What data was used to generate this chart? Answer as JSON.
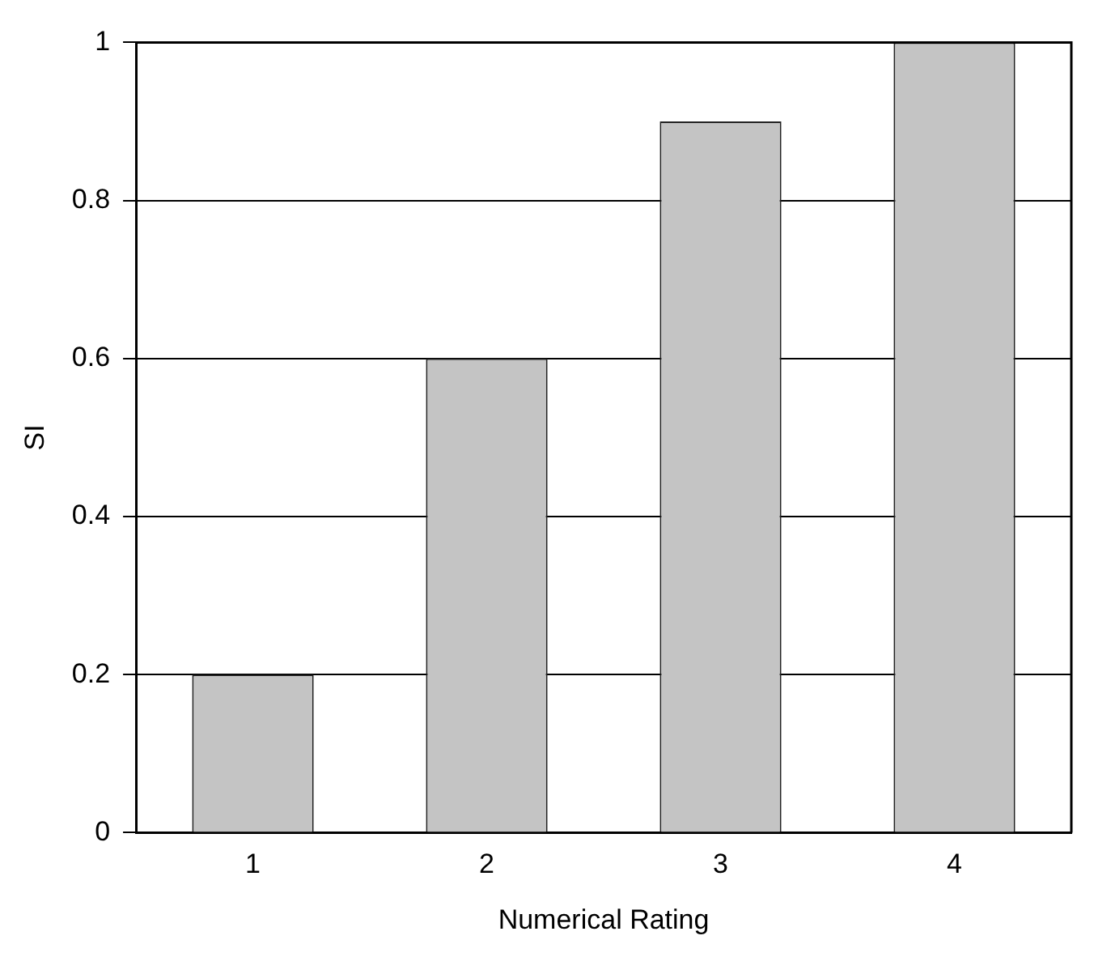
{
  "chart_data": {
    "type": "bar",
    "xlabel": "Numerical Rating",
    "ylabel": "SI",
    "categories": [
      "1",
      "2",
      "3",
      "4"
    ],
    "values": [
      0.2,
      0.6,
      0.9,
      1
    ],
    "color": "#c4c4c4",
    "ylim": [
      0,
      1
    ],
    "yticks": [
      0,
      0.2,
      0.4,
      0.6,
      0.8,
      1
    ],
    "grid": "y",
    "legend": false
  }
}
